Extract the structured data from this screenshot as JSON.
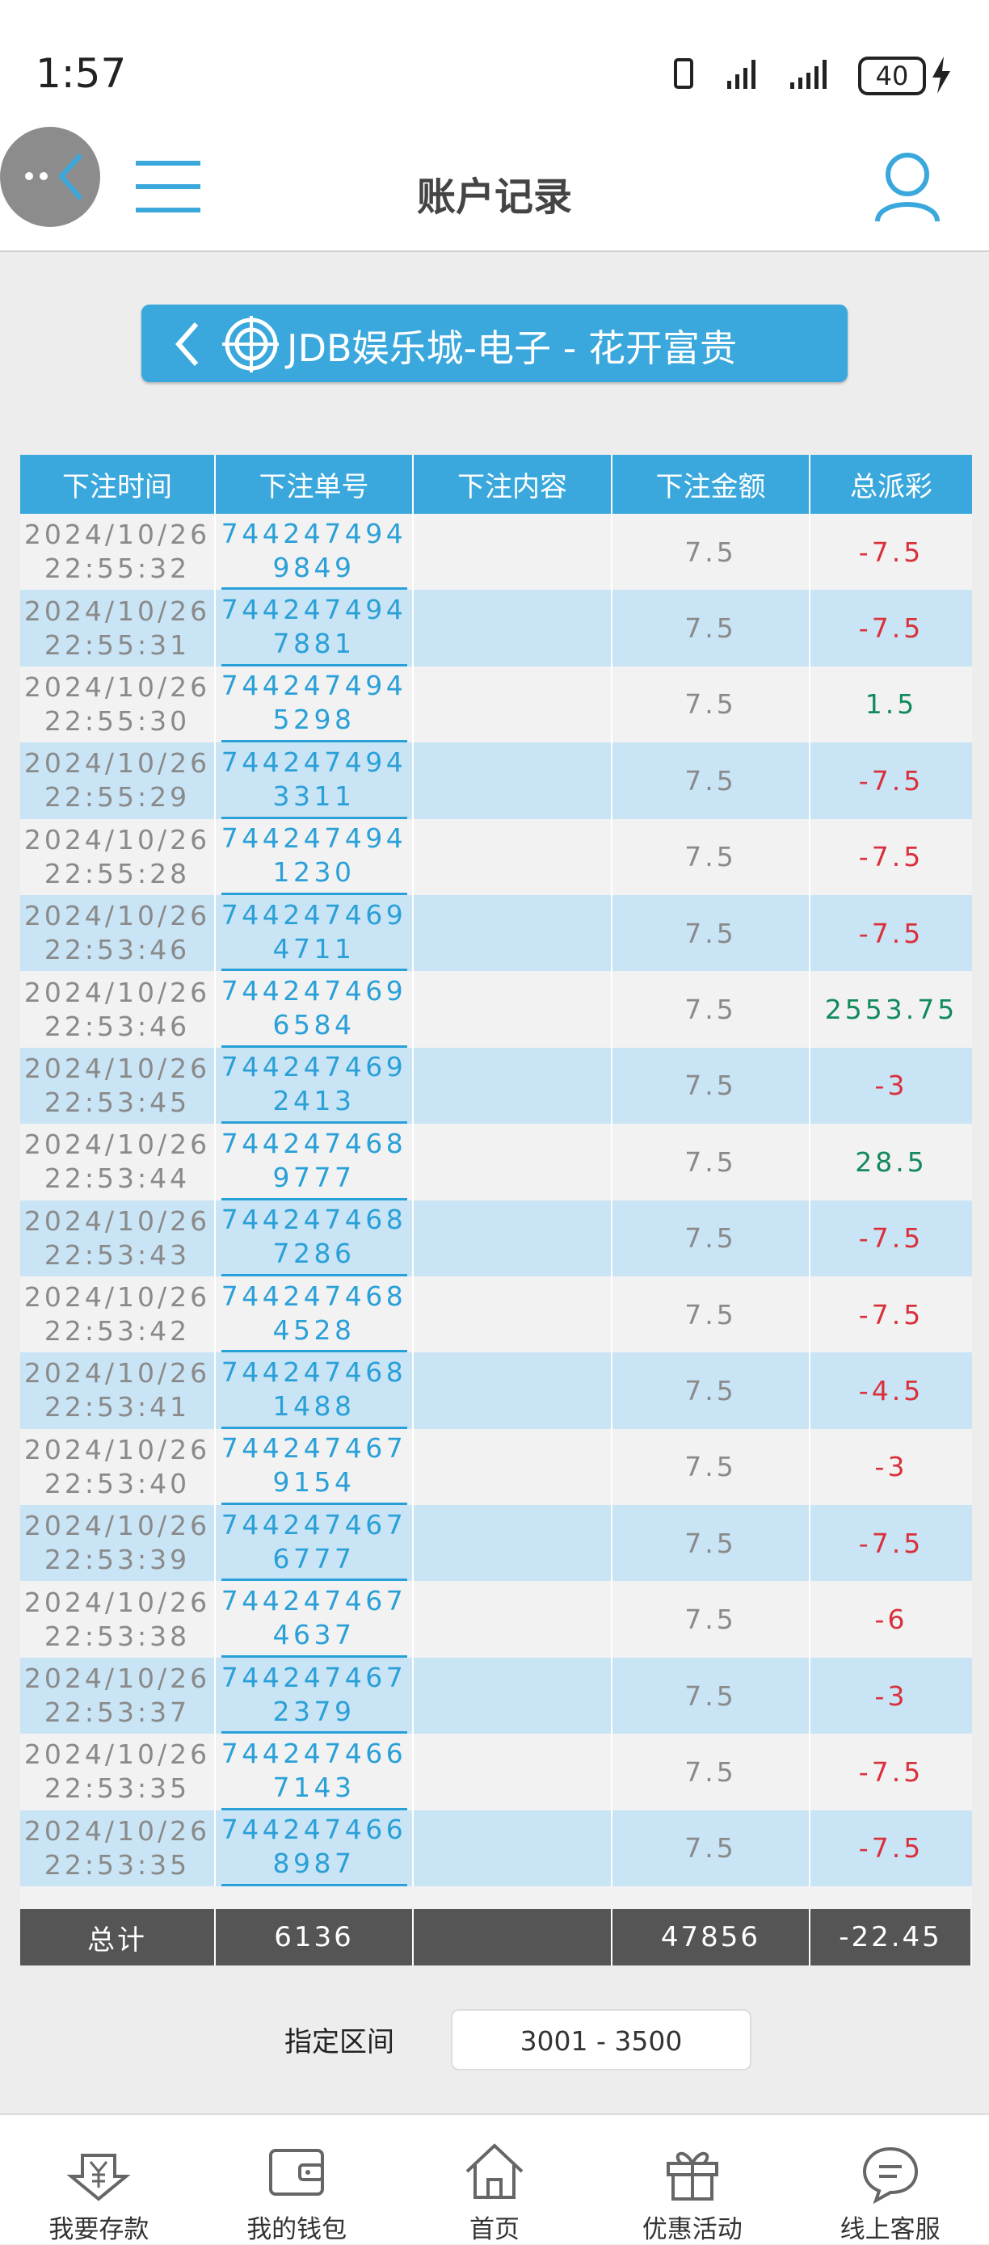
{
  "status_bar": {
    "time": "1:57",
    "battery": "40"
  },
  "header": {
    "title": "账户记录"
  },
  "game_button": {
    "label": "JDB娱乐城-电子 - 花开富贵"
  },
  "table": {
    "columns": [
      "下注时间",
      "下注单号",
      "下注内容",
      "下注金额",
      "总派彩"
    ],
    "rows": [
      {
        "date": "2024/10/26",
        "time": "22:55:32",
        "order": "7442474949849",
        "amount": 7.5,
        "payout": -7.5
      },
      {
        "date": "2024/10/26",
        "time": "22:55:31",
        "order": "7442474947881",
        "amount": 7.5,
        "payout": -7.5
      },
      {
        "date": "2024/10/26",
        "time": "22:55:30",
        "order": "7442474945298",
        "amount": 7.5,
        "payout": 1.5
      },
      {
        "date": "2024/10/26",
        "time": "22:55:29",
        "order": "7442474943311",
        "amount": 7.5,
        "payout": -7.5
      },
      {
        "date": "2024/10/26",
        "time": "22:55:28",
        "order": "7442474941230",
        "amount": 7.5,
        "payout": -7.5
      },
      {
        "date": "2024/10/26",
        "time": "22:53:46",
        "order": "7442474694711",
        "amount": 7.5,
        "payout": -7.5
      },
      {
        "date": "2024/10/26",
        "time": "22:53:46",
        "order": "7442474696584",
        "amount": 7.5,
        "payout": 2553.75
      },
      {
        "date": "2024/10/26",
        "time": "22:53:45",
        "order": "7442474692413",
        "amount": 7.5,
        "payout": -3
      },
      {
        "date": "2024/10/26",
        "time": "22:53:44",
        "order": "7442474689777",
        "amount": 7.5,
        "payout": 28.5
      },
      {
        "date": "2024/10/26",
        "time": "22:53:43",
        "order": "7442474687286",
        "amount": 7.5,
        "payout": -7.5
      },
      {
        "date": "2024/10/26",
        "time": "22:53:42",
        "order": "7442474684528",
        "amount": 7.5,
        "payout": -7.5
      },
      {
        "date": "2024/10/26",
        "time": "22:53:41",
        "order": "7442474681488",
        "amount": 7.5,
        "payout": -4.5
      },
      {
        "date": "2024/10/26",
        "time": "22:53:40",
        "order": "7442474679154",
        "amount": 7.5,
        "payout": -3
      },
      {
        "date": "2024/10/26",
        "time": "22:53:39",
        "order": "7442474676777",
        "amount": 7.5,
        "payout": -7.5
      },
      {
        "date": "2024/10/26",
        "time": "22:53:38",
        "order": "7442474674637",
        "amount": 7.5,
        "payout": -6
      },
      {
        "date": "2024/10/26",
        "time": "22:53:37",
        "order": "7442474672379",
        "amount": 7.5,
        "payout": -3
      },
      {
        "date": "2024/10/26",
        "time": "22:53:35",
        "order": "7442474667143",
        "amount": 7.5,
        "payout": -7.5
      },
      {
        "date": "2024/10/26",
        "time": "22:53:35",
        "order": "7442474668987",
        "amount": 7.5,
        "payout": -7.5
      }
    ],
    "total": {
      "label": "总计",
      "count": 6136,
      "amount": 47856,
      "payout": -22.45
    }
  },
  "range": {
    "label": "指定区间",
    "value": "3001 - 3500"
  },
  "nav": [
    "我要存款",
    "我的钱包",
    "首页",
    "优惠活动",
    "线上客服"
  ]
}
